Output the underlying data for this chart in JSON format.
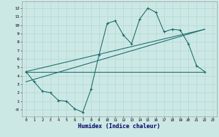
{
  "bg_color": "#cce8e5",
  "grid_color": "#aad4d0",
  "line_color": "#1a6b6a",
  "xlabel": "Humidex (Indice chaleur)",
  "xlim": [
    -0.5,
    23.5
  ],
  "ylim": [
    -0.8,
    12.8
  ],
  "xticks": [
    0,
    1,
    2,
    3,
    4,
    5,
    6,
    7,
    8,
    9,
    10,
    11,
    12,
    13,
    14,
    15,
    16,
    17,
    18,
    19,
    20,
    21,
    22,
    23
  ],
  "yticks": [
    0,
    1,
    2,
    3,
    4,
    5,
    6,
    7,
    8,
    9,
    10,
    11,
    12
  ],
  "ytick_labels": [
    "-0",
    "1",
    "2",
    "3",
    "4",
    "5",
    "6",
    "7",
    "8",
    "9",
    "10",
    "11",
    "12"
  ],
  "curve1_x": [
    0,
    1,
    2,
    3,
    4,
    5,
    6,
    7,
    8,
    9,
    10,
    11,
    12,
    13,
    14,
    15,
    16,
    17,
    18,
    19,
    20,
    21,
    22
  ],
  "curve1_y": [
    4.5,
    3.3,
    2.2,
    2.0,
    1.1,
    1.0,
    0.1,
    -0.3,
    2.4,
    6.5,
    10.2,
    10.5,
    8.8,
    7.8,
    10.7,
    12.0,
    11.5,
    9.2,
    9.5,
    9.4,
    7.8,
    5.2,
    4.5
  ],
  "line2_x": [
    0,
    22
  ],
  "line2_y": [
    4.5,
    9.5
  ],
  "line3_x": [
    0,
    22
  ],
  "line3_y": [
    4.5,
    4.5
  ],
  "line4_x": [
    0,
    22
  ],
  "line4_y": [
    3.3,
    9.5
  ]
}
